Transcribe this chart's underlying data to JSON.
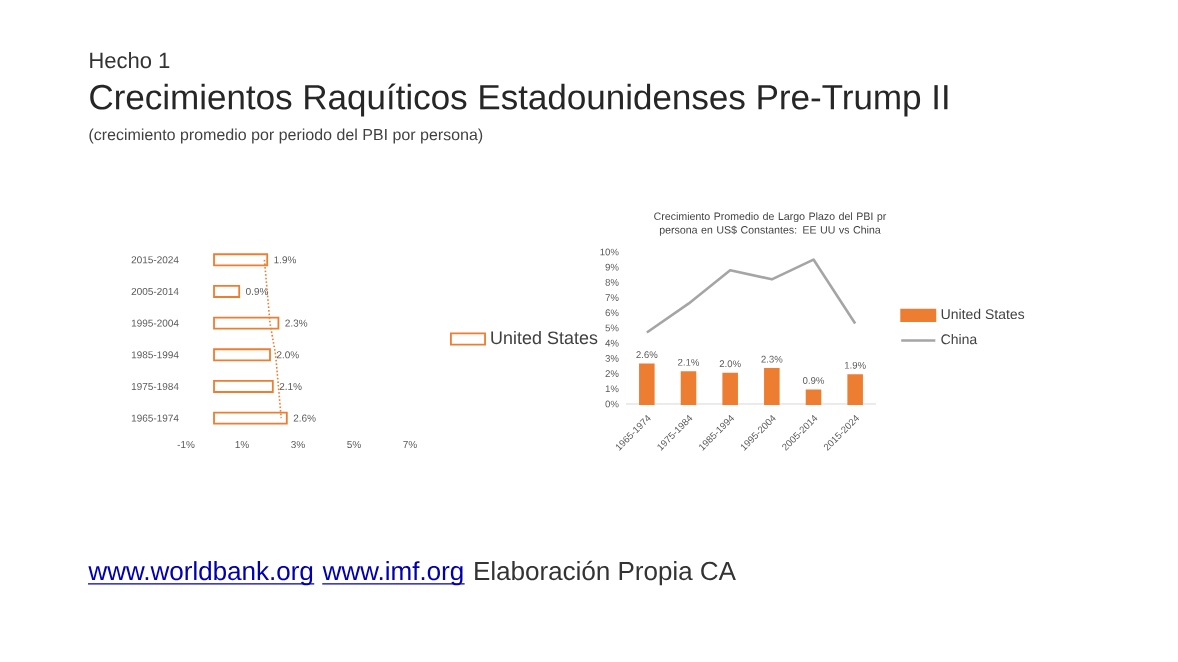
{
  "chart_data": [
    {
      "type": "bar",
      "orientation": "horizontal",
      "title": "Crecimientos Raquíticos Estadounidenses Pre-Trump II",
      "subtitle": "(crecimiento promedio por periodo del PBI por persona)",
      "annotations": [
        "Hecho 1",
        "www.worldbank.org",
        "www.imf.org",
        "Elaboración Propia CA"
      ],
      "categories": [
        "2015-2024",
        "2005-2014",
        "1995-2004",
        "1985-1994",
        "1975-1984",
        "1965-1974"
      ],
      "series": [
        {
          "name": "United States",
          "color": "#ed7d31",
          "values": [
            1.9,
            0.9,
            2.3,
            2.0,
            2.1,
            2.6
          ],
          "value_labels": [
            "1.9%",
            "0.9%",
            "2.3%",
            "2.0%",
            "2.1%",
            "2.6%"
          ]
        },
        {
          "type": "line",
          "color": "#ed7d31",
          "line_style": "dotted",
          "values": [
            1.8,
            1.9,
            2.0,
            2.2,
            2.3,
            2.4
          ]
        }
      ],
      "xlim": [
        -1,
        7
      ],
      "xticks": [
        {
          "value": -1,
          "label": "-1%"
        },
        {
          "value": 1,
          "label": "1%"
        },
        {
          "value": 3,
          "label": "3%"
        },
        {
          "value": 5,
          "label": "5%"
        },
        {
          "value": 7,
          "label": "7%"
        }
      ],
      "legend": "right"
    },
    {
      "type": "bar",
      "title": "Crecimiento Promedio de Largo Plazo del PBI pr persona en US$ Constantes: EE UU vs China",
      "categories": [
        "1965-1974",
        "1975-1984",
        "1985-1994",
        "1995-2004",
        "2005-2014",
        "2015-2024"
      ],
      "series": [
        {
          "name": "United States",
          "color": "#ed7d31",
          "values": [
            2.6,
            2.1,
            2.0,
            2.3,
            0.9,
            1.9
          ],
          "value_labels": [
            "2.6%",
            "2.1%",
            "2.0%",
            "2.3%",
            "0.9%",
            "1.9%"
          ]
        },
        {
          "name": "China",
          "type": "line",
          "color": "#a5a5a5",
          "values": [
            4.7,
            6.6,
            8.8,
            8.2,
            9.5,
            5.3
          ]
        }
      ],
      "ylim": [
        0,
        10
      ],
      "yticks": [
        {
          "value": 0,
          "label": "0%"
        },
        {
          "value": 1,
          "label": "1%"
        },
        {
          "value": 2,
          "label": "2%"
        },
        {
          "value": 3,
          "label": "3%"
        },
        {
          "value": 4,
          "label": "4%"
        },
        {
          "value": 5,
          "label": "5%"
        },
        {
          "value": 6,
          "label": "6%"
        },
        {
          "value": 7,
          "label": "7%"
        },
        {
          "value": 8,
          "label": "8%"
        },
        {
          "value": 9,
          "label": "9%"
        },
        {
          "value": 10,
          "label": "10%"
        }
      ],
      "legend": "right"
    }
  ]
}
